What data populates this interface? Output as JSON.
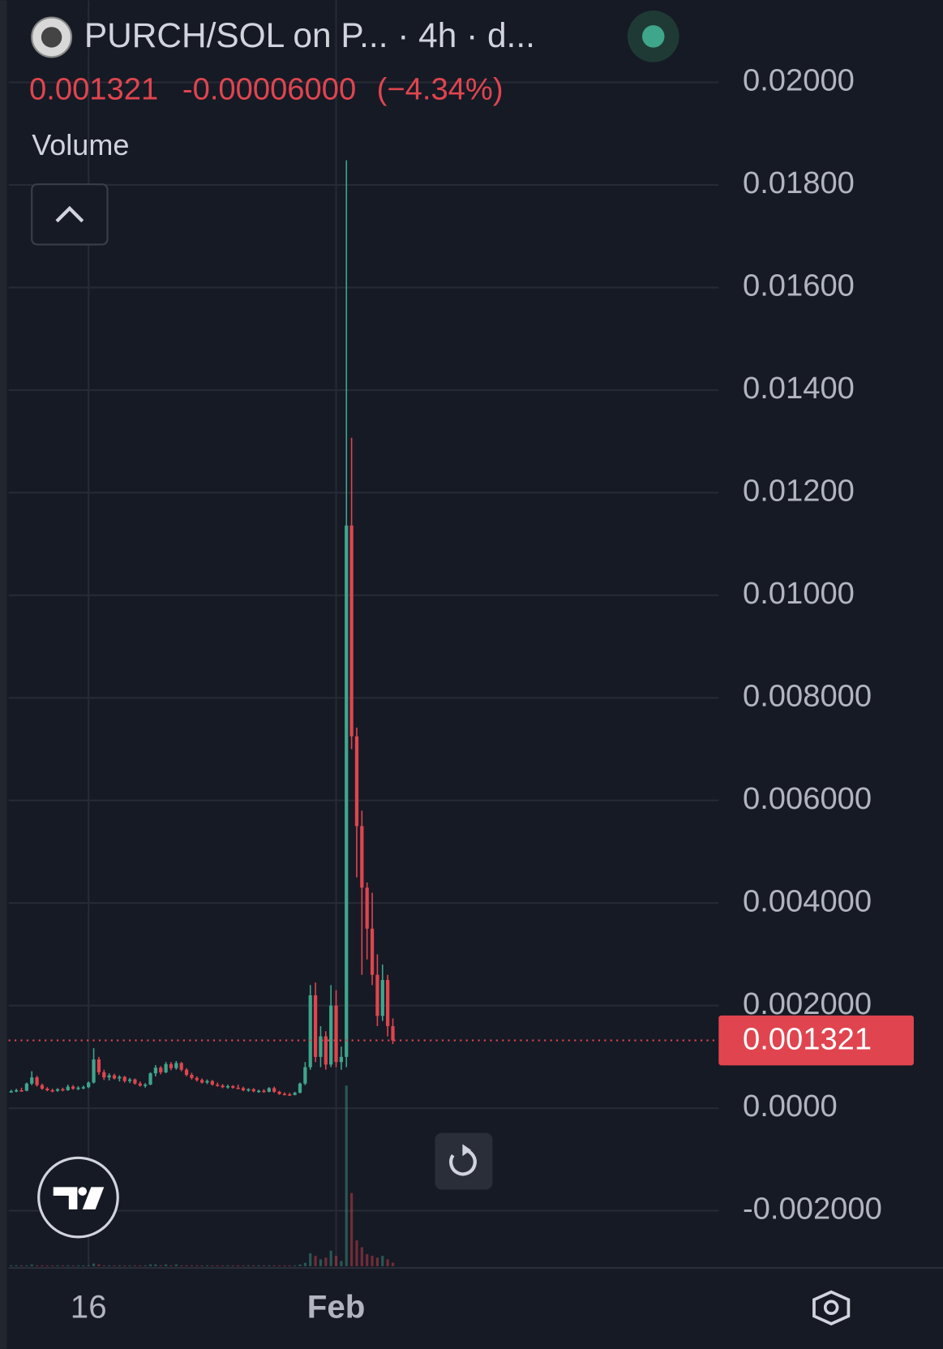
{
  "header": {
    "title": "PURCH/SOL on P... · 4h · d...",
    "price": "0.001321",
    "change": "-0.00006000",
    "change_pct": "(−4.34%)",
    "legend": "Volume"
  },
  "chart_data": {
    "type": "candlestick",
    "categories": [
      null,
      null,
      null,
      null,
      null,
      null,
      null,
      null,
      null,
      null,
      null,
      null,
      null,
      null,
      null,
      "16",
      null,
      null,
      null,
      null,
      null,
      null,
      null,
      null,
      null,
      null,
      null,
      null,
      null,
      null,
      null,
      null,
      null,
      null,
      null,
      null,
      null,
      null,
      null,
      null,
      null,
      null,
      null,
      null,
      null,
      null,
      null,
      null,
      null,
      null,
      null,
      null,
      null,
      null,
      null,
      null,
      null,
      null,
      null,
      null,
      null,
      null,
      null,
      "Feb",
      null,
      null,
      null,
      null,
      null,
      null,
      null,
      null,
      null,
      null,
      null
    ],
    "ohlc": [
      [
        0.00032,
        0.00036,
        0.0003,
        0.00033
      ],
      [
        0.00033,
        0.00038,
        0.00031,
        0.00035
      ],
      [
        0.00035,
        0.0004,
        0.00032,
        0.00034
      ],
      [
        0.00034,
        0.0005,
        0.00033,
        0.00048
      ],
      [
        0.00048,
        0.00072,
        0.00045,
        0.0006
      ],
      [
        0.0006,
        0.00063,
        0.00042,
        0.00045
      ],
      [
        0.00045,
        0.00048,
        0.00036,
        0.00038
      ],
      [
        0.00038,
        0.00041,
        0.00033,
        0.00035
      ],
      [
        0.00035,
        0.00038,
        0.00031,
        0.00034
      ],
      [
        0.00034,
        0.00039,
        0.00032,
        0.00037
      ],
      [
        0.00037,
        0.0004,
        0.00033,
        0.00035
      ],
      [
        0.00035,
        0.00046,
        0.00034,
        0.00042
      ],
      [
        0.00042,
        0.00045,
        0.00036,
        0.00038
      ],
      [
        0.00038,
        0.00043,
        0.00035,
        0.0004
      ],
      [
        0.0004,
        0.00044,
        0.00037,
        0.00041
      ],
      [
        0.00041,
        0.00052,
        0.00039,
        0.0005
      ],
      [
        0.0005,
        0.00117,
        0.00048,
        0.00095
      ],
      [
        0.00095,
        0.001,
        0.00065,
        0.0007
      ],
      [
        0.0007,
        0.00075,
        0.00055,
        0.0006
      ],
      [
        0.0006,
        0.00068,
        0.00054,
        0.00064
      ],
      [
        0.00064,
        0.00067,
        0.00056,
        0.00058
      ],
      [
        0.00058,
        0.00064,
        0.00052,
        0.00061
      ],
      [
        0.00061,
        0.00063,
        0.0005,
        0.00053
      ],
      [
        0.00053,
        0.00059,
        0.00049,
        0.00056
      ],
      [
        0.00056,
        0.00058,
        0.00046,
        0.00048
      ],
      [
        0.00048,
        0.00052,
        0.00042,
        0.00044
      ],
      [
        0.00044,
        0.00049,
        0.0004,
        0.00046
      ],
      [
        0.00046,
        0.0007,
        0.00045,
        0.00068
      ],
      [
        0.00068,
        0.00084,
        0.00062,
        0.00079
      ],
      [
        0.00079,
        0.00082,
        0.00066,
        0.0007
      ],
      [
        0.0007,
        0.0009,
        0.00068,
        0.00086
      ],
      [
        0.00086,
        0.0009,
        0.00074,
        0.00078
      ],
      [
        0.00078,
        0.00092,
        0.00075,
        0.00088
      ],
      [
        0.00088,
        0.0009,
        0.00072,
        0.00075
      ],
      [
        0.00075,
        0.00078,
        0.00062,
        0.00065
      ],
      [
        0.00065,
        0.00069,
        0.00056,
        0.00059
      ],
      [
        0.00059,
        0.00062,
        0.00052,
        0.00055
      ],
      [
        0.00055,
        0.00058,
        0.00048,
        0.0005
      ],
      [
        0.0005,
        0.00056,
        0.00047,
        0.00053
      ],
      [
        0.00053,
        0.00055,
        0.00044,
        0.00046
      ],
      [
        0.00046,
        0.0005,
        0.00042,
        0.00044
      ],
      [
        0.00044,
        0.00047,
        0.00039,
        0.00041
      ],
      [
        0.00041,
        0.00046,
        0.00038,
        0.00043
      ],
      [
        0.00043,
        0.00045,
        0.00038,
        0.0004
      ],
      [
        0.0004,
        0.00046,
        0.00037,
        0.00039
      ],
      [
        0.00039,
        0.00042,
        0.00033,
        0.00035
      ],
      [
        0.00035,
        0.00039,
        0.00032,
        0.00037
      ],
      [
        0.00037,
        0.00039,
        0.00031,
        0.00033
      ],
      [
        0.00033,
        0.00036,
        0.0003,
        0.00034
      ],
      [
        0.00034,
        0.00037,
        0.0003,
        0.00032
      ],
      [
        0.00032,
        0.00041,
        0.00031,
        0.00039
      ],
      [
        0.00039,
        0.00042,
        0.0003,
        0.00032
      ],
      [
        0.00032,
        0.00034,
        0.00026,
        0.00028
      ],
      [
        0.00028,
        0.00031,
        0.00025,
        0.00027
      ],
      [
        0.00027,
        0.0003,
        0.00024,
        0.00026
      ],
      [
        0.00026,
        0.00032,
        0.00025,
        0.0003
      ],
      [
        0.0003,
        0.0005,
        0.00029,
        0.00048
      ],
      [
        0.00048,
        0.0009,
        0.00045,
        0.0008
      ],
      [
        0.0008,
        0.0024,
        0.00075,
        0.0022
      ],
      [
        0.0022,
        0.00245,
        0.0009,
        0.001
      ],
      [
        0.001,
        0.0016,
        0.0008,
        0.0014
      ],
      [
        0.0014,
        0.0015,
        0.00075,
        0.00085
      ],
      [
        0.00085,
        0.0024,
        0.0008,
        0.002
      ],
      [
        0.002,
        0.0023,
        0.0008,
        0.0009
      ],
      [
        0.0009,
        0.0012,
        0.00075,
        0.001
      ],
      [
        0.001,
        0.01848,
        0.0008,
        0.01136
      ],
      [
        0.01136,
        0.01307,
        0.007,
        0.00725
      ],
      [
        0.00725,
        0.00742,
        0.0045,
        0.0055
      ],
      [
        0.0055,
        0.0058,
        0.0026,
        0.0043
      ],
      [
        0.0043,
        0.0044,
        0.0029,
        0.0035
      ],
      [
        0.0035,
        0.0042,
        0.0024,
        0.0026
      ],
      [
        0.0026,
        0.003,
        0.0016,
        0.0018
      ],
      [
        0.0018,
        0.0028,
        0.0017,
        0.0025
      ],
      [
        0.0025,
        0.0026,
        0.0014,
        0.0016
      ],
      [
        0.0016,
        0.00175,
        0.00125,
        0.001321
      ]
    ],
    "volume": [
      1,
      1,
      1,
      1,
      2,
      1,
      1,
      1,
      1,
      1,
      1,
      1,
      1,
      1,
      1,
      1,
      3,
      2,
      1,
      1,
      1,
      1,
      1,
      1,
      1,
      1,
      1,
      2,
      2,
      1,
      2,
      1,
      2,
      1,
      1,
      1,
      1,
      1,
      1,
      1,
      1,
      1,
      1,
      1,
      1,
      1,
      1,
      1,
      1,
      1,
      1,
      1,
      1,
      1,
      1,
      1,
      2,
      4,
      15,
      12,
      8,
      10,
      18,
      12,
      6,
      210,
      85,
      30,
      22,
      14,
      12,
      10,
      12,
      8,
      4
    ],
    "up_color": "#3fa58b",
    "down_color": "#e0454f",
    "ylim": [
      -0.00308,
      0.0216
    ],
    "yticks": [
      {
        "value": 0.02,
        "label": "0.02000"
      },
      {
        "value": 0.018,
        "label": "0.01800"
      },
      {
        "value": 0.016,
        "label": "0.01600"
      },
      {
        "value": 0.014,
        "label": "0.01400"
      },
      {
        "value": 0.012,
        "label": "0.01200"
      },
      {
        "value": 0.01,
        "label": "0.01000"
      },
      {
        "value": 0.008,
        "label": "0.008000"
      },
      {
        "value": 0.006,
        "label": "0.006000"
      },
      {
        "value": 0.004,
        "label": "0.004000"
      },
      {
        "value": 0.002,
        "label": "0.002000"
      },
      {
        "value": 0,
        "label": "0.0000"
      },
      {
        "value": -0.002,
        "label": "-0.002000"
      }
    ],
    "grid": true
  }
}
